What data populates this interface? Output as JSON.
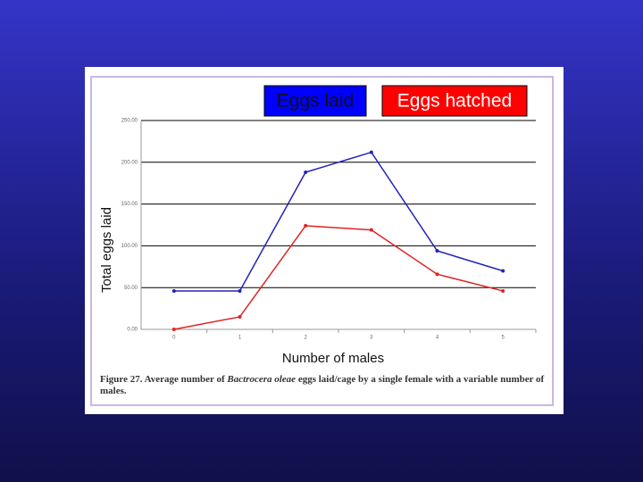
{
  "chart_data": {
    "type": "line",
    "x_label": "Number of males",
    "y_label": "Total eggs laid",
    "categories": [
      "0",
      "1",
      "2",
      "3",
      "4",
      "5"
    ],
    "series": [
      {
        "name": "Eggs laid",
        "color": "#2323b8",
        "legend_color": "#0000ff",
        "values": [
          46,
          46,
          188,
          212,
          94,
          70
        ]
      },
      {
        "name": "Eggs hatched",
        "color": "#e02424",
        "legend_color": "#ff0000",
        "values": [
          0,
          15,
          124,
          119,
          66,
          46
        ]
      }
    ],
    "ylim": [
      0,
      250
    ],
    "yticks": [
      {
        "value": 0,
        "label": "0.00"
      },
      {
        "value": 50,
        "label": "50.00"
      },
      {
        "value": 100,
        "label": "100.00"
      },
      {
        "value": 150,
        "label": "150.00"
      },
      {
        "value": 200,
        "label": "200.00"
      },
      {
        "value": 250,
        "label": "250.00"
      }
    ],
    "grid": true,
    "caption": {
      "label": "Figure 27.",
      "parts": [
        " Average number of ",
        "Bactrocera oleae",
        " eggs laid/cage by a single female with a variable number of males."
      ]
    }
  }
}
